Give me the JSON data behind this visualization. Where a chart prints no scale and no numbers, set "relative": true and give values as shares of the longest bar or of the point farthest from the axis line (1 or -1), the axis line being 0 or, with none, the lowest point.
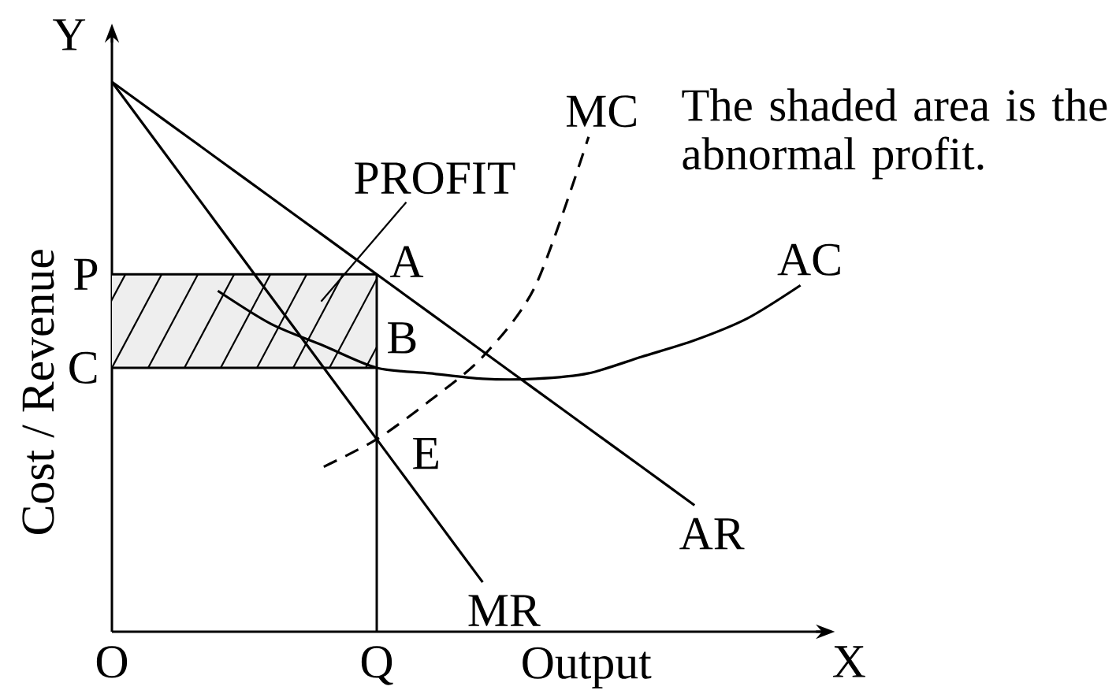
{
  "chart_data": {
    "type": "line",
    "relative": true,
    "xlabel": "Output",
    "ylabel": "Cost / Revenue",
    "line_style": "solid",
    "categories": [
      "O",
      null,
      null,
      null,
      null,
      "Q",
      null,
      null,
      null,
      null,
      null,
      null,
      null,
      null
    ],
    "series": [
      {
        "name": "AR",
        "color": "#000000",
        "values": [
          1.0,
          0.93,
          0.86,
          0.79,
          0.72,
          0.65,
          0.58,
          0.51,
          0.44,
          0.37,
          0.3,
          0.23,
          null,
          null
        ]
      },
      {
        "name": "MR",
        "color": "#000000",
        "values": [
          1.0,
          0.87,
          0.74,
          0.61,
          0.48,
          0.35,
          0.22,
          0.09,
          null,
          null,
          null,
          null,
          null,
          null
        ]
      },
      {
        "name": "MC",
        "color": "#000000",
        "line_style": "dashed",
        "values": [
          null,
          null,
          null,
          null,
          0.3,
          0.35,
          0.42,
          0.5,
          0.63,
          0.9,
          null,
          null,
          null,
          null
        ]
      },
      {
        "name": "AC",
        "color": "#000000",
        "values": [
          null,
          null,
          0.62,
          0.56,
          0.52,
          0.48,
          0.47,
          0.46,
          0.46,
          0.47,
          0.5,
          0.53,
          0.57,
          0.63
        ]
      }
    ],
    "ref_lines": [
      {
        "axis": "y",
        "value": 0.65,
        "label": "P"
      },
      {
        "axis": "y",
        "value": 0.48,
        "label": "C"
      },
      {
        "axis": "x",
        "value": "Q"
      }
    ],
    "bands": [
      {
        "axis": "y",
        "from": 0.48,
        "to": 0.65,
        "color": "#eeeeee"
      }
    ],
    "annotations": [
      "The shaded area is the abnormal profit.",
      "X",
      "Y",
      "PROFIT",
      {
        "text": "A",
        "x": "Q",
        "y": 0.65
      },
      {
        "text": "B",
        "x": "Q",
        "y": 0.48
      },
      {
        "text": "E",
        "x": "Q",
        "y": 0.35
      }
    ]
  }
}
